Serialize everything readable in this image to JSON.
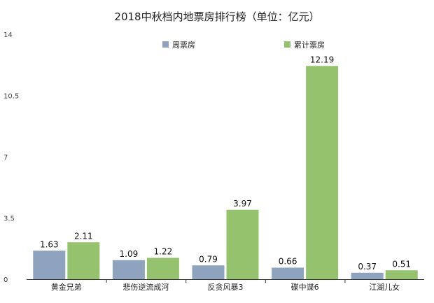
{
  "chart_data": {
    "type": "bar",
    "title": "2018中秋档内地票房排行榜（单位：亿元）",
    "categories": [
      "黄金兄弟",
      "悲伤逆流成河",
      "反贪风暴3",
      "碟中谍6",
      "江湖儿女"
    ],
    "series": [
      {
        "name": "周票房",
        "color": "#8ea3be",
        "values": [
          1.63,
          1.09,
          0.79,
          0.66,
          0.37
        ],
        "labels": [
          "1.63",
          "1.09",
          "0.79",
          "0.66",
          "0.37"
        ]
      },
      {
        "name": "累计票房",
        "color": "#95c26d",
        "values": [
          2.11,
          1.22,
          3.97,
          12.19,
          0.51
        ],
        "labels": [
          "2.11",
          "1.22",
          "3.97",
          "12.19",
          "0.51"
        ]
      }
    ],
    "ylim": [
      0,
      14
    ],
    "yticks": [
      "0",
      "3.5",
      "7",
      "10.5",
      "14"
    ],
    "ytick_values": [
      0,
      3.5,
      7,
      10.5,
      14
    ],
    "xlabel": "",
    "ylabel": "",
    "grid": false,
    "legend_position": "top"
  }
}
